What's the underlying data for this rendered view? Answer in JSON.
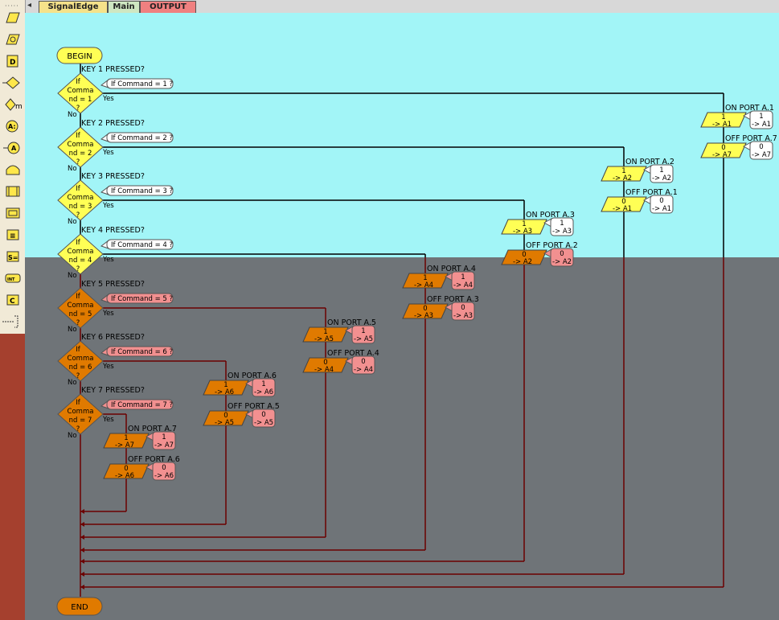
{
  "tabs": [
    {
      "label": "SignalEdge",
      "color": "#f5e28a"
    },
    {
      "label": "Main",
      "color": "#cfe7c2"
    },
    {
      "label": "OUTPUT",
      "color": "#f08080",
      "active": true
    }
  ],
  "toolbox_icons": [
    "input-icon",
    "output-icon",
    "delay-icon",
    "decision-icon",
    "key-icon",
    "assign-icon",
    "calc-icon",
    "loop-icon",
    "macro-icon",
    "component-icon",
    "string-icon",
    "switch-icon",
    "interrupt-icon",
    "comment-icon",
    "connector-icon"
  ],
  "colors": {
    "active_bg": "#a2f5f7",
    "disabled_bg": "#6f7478",
    "decision_active": "#ffff55",
    "decision_disabled": "#e07a00",
    "output_active": "#ffff55",
    "output_disabled": "#e07a00",
    "note_active": "#ffffff",
    "note_disabled": "#f29090",
    "terminator_begin": "#ffff55",
    "terminator_end": "#e07a00",
    "wire": "#6b0000"
  },
  "begin_label": "BEGIN",
  "end_label": "END",
  "decisions": [
    {
      "title": "KEY 1 PRESSED?",
      "shape_text": [
        "If",
        "Comma",
        "nd = 1",
        "?"
      ],
      "comment": "If Command = 1 ?",
      "yes": "Yes",
      "no": "No"
    },
    {
      "title": "KEY 2 PRESSED?",
      "shape_text": [
        "If",
        "Comma",
        "nd = 2",
        "?"
      ],
      "comment": "If Command = 2 ?",
      "yes": "Yes",
      "no": "No"
    },
    {
      "title": "KEY 3 PRESSED?",
      "shape_text": [
        "If",
        "Comma",
        "nd = 3",
        "?"
      ],
      "comment": "If Command = 3 ?",
      "yes": "Yes",
      "no": "No"
    },
    {
      "title": "KEY 4 PRESSED?",
      "shape_text": [
        "If",
        "Comma",
        "nd = 4",
        "?"
      ],
      "comment": "If Command = 4 ?",
      "yes": "Yes",
      "no": "No"
    },
    {
      "title": "KEY 5 PRESSED?",
      "shape_text": [
        "If",
        "Comma",
        "nd = 5",
        "?"
      ],
      "comment": "If Command = 5 ?",
      "yes": "Yes",
      "no": "No"
    },
    {
      "title": "KEY 6 PRESSED?",
      "shape_text": [
        "If",
        "Comma",
        "nd = 6",
        "?"
      ],
      "comment": "If Command = 6 ?",
      "yes": "Yes",
      "no": "No"
    },
    {
      "title": "KEY 7 PRESSED?",
      "shape_text": [
        "If",
        "Comma",
        "nd = 7",
        "?"
      ],
      "comment": "If Command = 7 ?",
      "yes": "Yes",
      "no": "No"
    }
  ],
  "branches": [
    {
      "on_label": "ON PORT A.1",
      "on_value": "1",
      "on_target": "-> A1",
      "off_label": "OFF PORT A.7",
      "off_value": "0",
      "off_target": "-> A7"
    },
    {
      "on_label": "ON PORT A.2",
      "on_value": "1",
      "on_target": "-> A2",
      "off_label": "OFF PORT A.1",
      "off_value": "0",
      "off_target": "-> A1"
    },
    {
      "on_label": "ON PORT A.3",
      "on_value": "1",
      "on_target": "-> A3",
      "off_label": "OFF PORT A.2",
      "off_value": "0",
      "off_target": "-> A2"
    },
    {
      "on_label": "ON PORT A.4",
      "on_value": "1",
      "on_target": "-> A4",
      "off_label": "OFF PORT A.3",
      "off_value": "0",
      "off_target": "-> A3"
    },
    {
      "on_label": "ON PORT A.5",
      "on_value": "1",
      "on_target": "-> A5",
      "off_label": "OFF PORT A.4",
      "off_value": "0",
      "off_target": "-> A4"
    },
    {
      "on_label": "ON PORT A.6",
      "on_value": "1",
      "on_target": "-> A6",
      "off_label": "OFF PORT A.5",
      "off_value": "0",
      "off_target": "-> A5"
    },
    {
      "on_label": "ON PORT A.7",
      "on_value": "1",
      "on_target": "-> A7",
      "off_label": "OFF PORT A.6",
      "off_value": "0",
      "off_target": "-> A6"
    }
  ]
}
